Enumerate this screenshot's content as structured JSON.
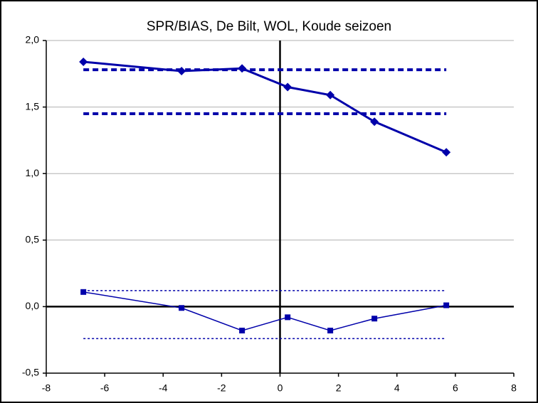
{
  "chart_data": {
    "type": "line",
    "title": "SPR/BIAS, De Bilt, WOL, Koude seizoen",
    "xlim": [
      -8,
      8
    ],
    "xticks": [
      -8,
      -6,
      -4,
      -2,
      0,
      2,
      4,
      6,
      8
    ],
    "ylim": [
      -0.5,
      2.0
    ],
    "yticks": [
      {
        "value": -0.5,
        "label": "-0,5"
      },
      {
        "value": 0,
        "label": "0,0"
      },
      {
        "value": 0.5,
        "label": "0,5"
      },
      {
        "value": 1.0,
        "label": "1,0"
      },
      {
        "value": 1.5,
        "label": "1,5"
      },
      {
        "value": 2.0,
        "label": "2,0"
      }
    ],
    "grid": true,
    "series": [
      {
        "color": "#0000aa",
        "width": 3,
        "dash": "none",
        "marker": "diamond",
        "x": [
          -6.73,
          -3.37,
          -1.3,
          0.26,
          1.72,
          3.23,
          5.69
        ],
        "values": [
          1.84,
          1.77,
          1.79,
          1.65,
          1.59,
          1.39,
          1.16
        ]
      },
      {
        "color": "#0000aa",
        "width": 1.5,
        "dash": "none",
        "marker": "square",
        "x": [
          -6.73,
          -3.37,
          -1.3,
          0.26,
          1.72,
          3.23,
          5.69
        ],
        "values": [
          0.11,
          -0.01,
          -0.18,
          -0.08,
          -0.18,
          -0.09,
          0.01
        ]
      },
      {
        "color": "#0000aa",
        "width": 4,
        "dash": "8,5",
        "marker": "none",
        "x": [
          -6.73,
          5.69
        ],
        "values": [
          1.78,
          1.78
        ]
      },
      {
        "color": "#0000aa",
        "width": 4,
        "dash": "8,5",
        "marker": "none",
        "x": [
          -6.73,
          5.69
        ],
        "values": [
          1.45,
          1.45
        ]
      },
      {
        "color": "#0000aa",
        "width": 1.5,
        "dash": "3,3",
        "marker": "none",
        "x": [
          -6.73,
          5.69
        ],
        "values": [
          0.12,
          0.12
        ]
      },
      {
        "color": "#0000aa",
        "width": 1.5,
        "dash": "3,3",
        "marker": "none",
        "x": [
          -6.73,
          5.69
        ],
        "values": [
          -0.24,
          -0.24
        ]
      }
    ]
  }
}
